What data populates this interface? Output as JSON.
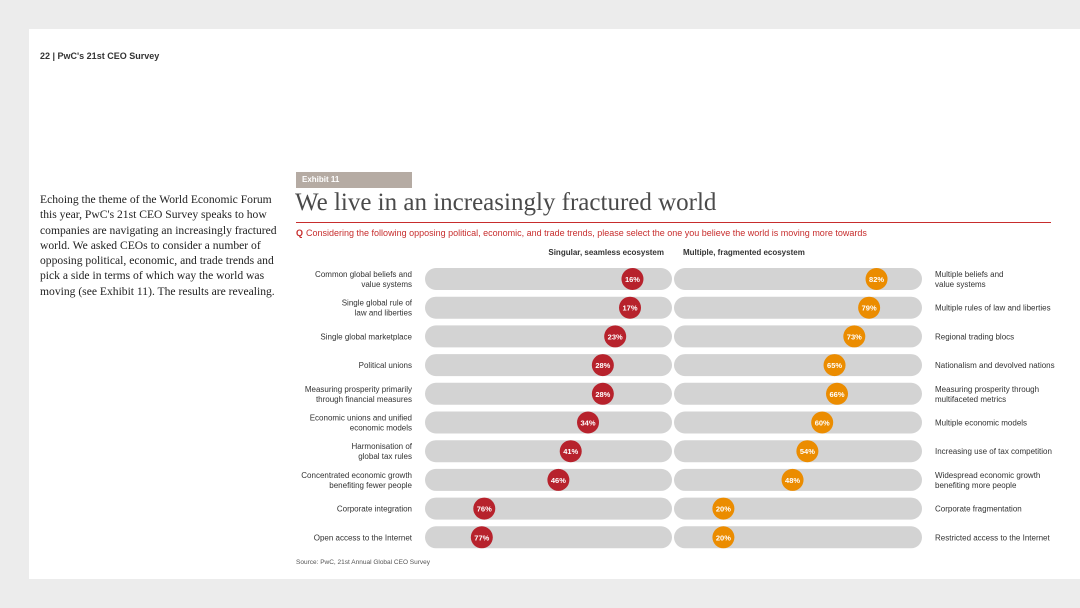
{
  "header": {
    "text": "22  |  PwC's 21st CEO Survey"
  },
  "intro": {
    "text": "Echoing the theme of the World Economic Forum this year, PwC's 21st CEO Survey speaks to how companies are navigating an increasingly fractured world. We asked CEOs to consider a number of opposing political, economic, and trade trends and pick a side in terms of which way the world was moving (see Exhibit 11). The results are revealing."
  },
  "exhibit": {
    "tag": "Exhibit 11",
    "title": "We live in an increasingly fractured world",
    "question_prefix": "Q",
    "question": "Considering the following opposing political, economic, and trade trends, please select the one you believe the world is moving more towards",
    "source": "Source: PwC, 21st Annual Global CEO Survey"
  },
  "colors": {
    "left_marker": "#b7222c",
    "right_marker": "#eb8c00",
    "track": "#d3d3d3",
    "accent": "#c72d2d"
  },
  "chart_data": {
    "type": "bar",
    "title": "We live in an increasingly fractured world",
    "left_header": "Singular, seamless ecosystem",
    "right_header": "Multiple, fragmented ecosystem",
    "unit": "%",
    "rows": [
      {
        "left_label": "Common global beliefs and\nvalue systems",
        "left_value": 16,
        "right_label": "Multiple beliefs and\nvalue systems",
        "right_value": 82
      },
      {
        "left_label": "Single global rule of\nlaw and liberties",
        "left_value": 17,
        "right_label": "Multiple rules of law and liberties",
        "right_value": 79
      },
      {
        "left_label": "Single global marketplace",
        "left_value": 23,
        "right_label": "Regional trading blocs",
        "right_value": 73
      },
      {
        "left_label": "Political unions",
        "left_value": 28,
        "right_label": "Nationalism and devolved nations",
        "right_value": 65
      },
      {
        "left_label": "Measuring prosperity primarily\nthrough financial measures",
        "left_value": 28,
        "right_label": "Measuring prosperity through\nmultifaceted metrics",
        "right_value": 66
      },
      {
        "left_label": "Economic unions and unified\neconomic models",
        "left_value": 34,
        "right_label": "Multiple economic models",
        "right_value": 60
      },
      {
        "left_label": "Harmonisation of\nglobal tax rules",
        "left_value": 41,
        "right_label": "Increasing use of tax competition",
        "right_value": 54
      },
      {
        "left_label": "Concentrated economic growth\nbenefiting fewer people",
        "left_value": 46,
        "right_label": "Widespread economic growth\nbenefiting more people",
        "right_value": 48
      },
      {
        "left_label": "Corporate integration",
        "left_value": 76,
        "right_label": "Corporate fragmentation",
        "right_value": 20
      },
      {
        "left_label": "Open access to the Internet",
        "left_value": 77,
        "right_label": "Restricted access to the Internet",
        "right_value": 20
      }
    ]
  }
}
